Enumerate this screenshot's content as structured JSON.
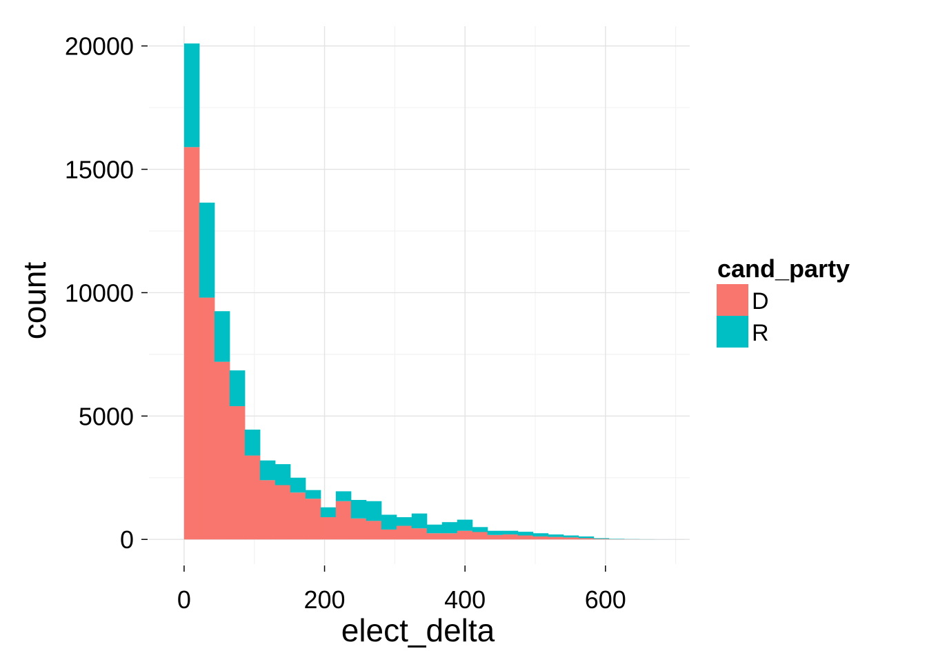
{
  "chart_data": {
    "type": "bar",
    "subtype": "stacked-histogram",
    "title": "",
    "xlabel": "elect_delta",
    "ylabel": "count",
    "xlim": [
      -50,
      720
    ],
    "ylim": [
      -1000,
      20800
    ],
    "x_ticks": [
      0,
      200,
      400,
      600
    ],
    "x_tick_labels": [
      "0",
      "200",
      "400",
      "600"
    ],
    "y_ticks": [
      0,
      5000,
      10000,
      15000,
      20000
    ],
    "y_tick_labels": [
      "0",
      "5000",
      "10000",
      "15000",
      "20000"
    ],
    "grid": true,
    "legend": {
      "title": "cand_party",
      "position": "right"
    },
    "bin_width": 21.6,
    "bin_start": 0,
    "series": [
      {
        "name": "D",
        "color": "#F8766D",
        "values": [
          15900,
          9800,
          7200,
          5400,
          3400,
          2400,
          2200,
          1900,
          1650,
          900,
          1550,
          850,
          750,
          400,
          550,
          450,
          250,
          250,
          350,
          300,
          180,
          200,
          160,
          120,
          100,
          80,
          50,
          20,
          10,
          5,
          3,
          1,
          1
        ]
      },
      {
        "name": "R",
        "color": "#00BFC4",
        "values": [
          4200,
          3850,
          2050,
          1450,
          1050,
          800,
          850,
          600,
          350,
          400,
          400,
          750,
          800,
          600,
          350,
          600,
          350,
          450,
          450,
          200,
          170,
          150,
          150,
          130,
          100,
          80,
          70,
          30,
          15,
          8,
          4,
          2,
          1
        ]
      }
    ]
  }
}
